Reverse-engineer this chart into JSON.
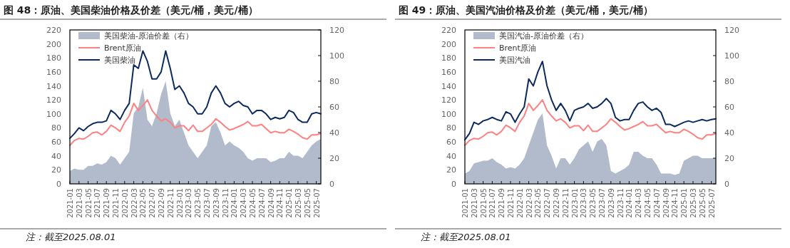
{
  "chart_data": [
    {
      "type": "line",
      "title": "图 48：原油、美国柴油价格及价差（美元/桶，美元/桶）",
      "annotations": [
        "注：截至2025.08.01"
      ],
      "legend": "top left",
      "x": [
        "2021-01",
        "2021-02",
        "2021-03",
        "2021-04",
        "2021-05",
        "2021-06",
        "2021-07",
        "2021-08",
        "2021-09",
        "2021-10",
        "2021-11",
        "2021-12",
        "2022-01",
        "2022-02",
        "2022-03",
        "2022-04",
        "2022-05",
        "2022-06",
        "2022-07",
        "2022-08",
        "2022-09",
        "2022-10",
        "2022-11",
        "2022-12",
        "2023-01",
        "2023-02",
        "2023-03",
        "2023-04",
        "2023-05",
        "2023-06",
        "2023-07",
        "2023-08",
        "2023-09",
        "2023-10",
        "2023-11",
        "2023-12",
        "2024-01",
        "2024-02",
        "2024-03",
        "2024-04",
        "2024-05",
        "2024-06",
        "2024-07",
        "2024-08",
        "2024-09",
        "2024-10",
        "2024-11",
        "2024-12",
        "2025-01",
        "2025-02",
        "2025-03",
        "2025-04",
        "2025-05",
        "2025-06",
        "2025-07",
        "2025-08"
      ],
      "xlim": [
        "2021-01",
        "2025-08"
      ],
      "xticks": [
        "2021-01",
        "2021-03",
        "2021-05",
        "2021-07",
        "2021-09",
        "2021-11",
        "2022-01",
        "2022-03",
        "2022-05",
        "2022-07",
        "2022-09",
        "2022-11",
        "2023-01",
        "2023-03",
        "2023-05",
        "2023-07",
        "2023-09",
        "2023-11",
        "2024-01",
        "2024-03",
        "2024-05",
        "2024-07",
        "2024-09",
        "2024-11",
        "2025-01",
        "2025-03",
        "2025-05",
        "2025-07"
      ],
      "ylim": [
        0,
        220
      ],
      "yticks": [
        0,
        20,
        40,
        60,
        80,
        100,
        120,
        140,
        160,
        180,
        200,
        220
      ],
      "y2lim": [
        0,
        120
      ],
      "y2ticks": [
        0,
        20,
        40,
        60,
        80,
        100,
        120
      ],
      "series": [
        {
          "name": "美国柴油-原油价差（右）",
          "type": "area",
          "axis": "y2",
          "color": "#b1bbcc",
          "values": [
            10,
            12,
            11,
            11,
            14,
            14,
            16,
            15,
            17,
            22,
            20,
            15,
            20,
            25,
            55,
            60,
            75,
            50,
            45,
            55,
            70,
            80,
            55,
            45,
            50,
            40,
            30,
            25,
            20,
            25,
            30,
            45,
            48,
            40,
            30,
            33,
            30,
            28,
            25,
            20,
            18,
            20,
            20,
            20,
            17,
            18,
            20,
            20,
            25,
            22,
            22,
            20,
            25,
            30,
            33,
            35
          ]
        },
        {
          "name": "Brent原油",
          "color": "#ff8080",
          "values": [
            55,
            62,
            65,
            64,
            68,
            73,
            74,
            70,
            75,
            84,
            80,
            75,
            88,
            97,
            115,
            105,
            112,
            120,
            105,
            97,
            90,
            93,
            88,
            80,
            83,
            83,
            76,
            84,
            75,
            75,
            80,
            85,
            93,
            88,
            82,
            77,
            79,
            82,
            85,
            89,
            83,
            83,
            85,
            79,
            73,
            75,
            73,
            73,
            78,
            75,
            71,
            66,
            64,
            70,
            70,
            72
          ]
        },
        {
          "name": "美国柴油",
          "color": "#0c2a5e",
          "values": [
            65,
            72,
            80,
            76,
            82,
            86,
            88,
            88,
            90,
            105,
            100,
            92,
            105,
            115,
            170,
            165,
            190,
            175,
            150,
            150,
            160,
            190,
            165,
            135,
            140,
            130,
            115,
            110,
            100,
            100,
            110,
            130,
            140,
            130,
            115,
            110,
            115,
            118,
            112,
            110,
            100,
            105,
            105,
            100,
            92,
            95,
            93,
            95,
            105,
            102,
            92,
            88,
            88,
            100,
            102,
            100
          ]
        }
      ]
    },
    {
      "type": "line",
      "title": "图 49：原油、美国汽油价格及价差（美元/桶，美元/桶）",
      "annotations": [
        "注：截至2025.08.01"
      ],
      "legend": "top left",
      "x": [
        "2021-01",
        "2021-02",
        "2021-03",
        "2021-04",
        "2021-05",
        "2021-06",
        "2021-07",
        "2021-08",
        "2021-09",
        "2021-10",
        "2021-11",
        "2021-12",
        "2022-01",
        "2022-02",
        "2022-03",
        "2022-04",
        "2022-05",
        "2022-06",
        "2022-07",
        "2022-08",
        "2022-09",
        "2022-10",
        "2022-11",
        "2022-12",
        "2023-01",
        "2023-02",
        "2023-03",
        "2023-04",
        "2023-05",
        "2023-06",
        "2023-07",
        "2023-08",
        "2023-09",
        "2023-10",
        "2023-11",
        "2023-12",
        "2024-01",
        "2024-02",
        "2024-03",
        "2024-04",
        "2024-05",
        "2024-06",
        "2024-07",
        "2024-08",
        "2024-09",
        "2024-10",
        "2024-11",
        "2024-12",
        "2025-01",
        "2025-02",
        "2025-03",
        "2025-04",
        "2025-05",
        "2025-06",
        "2025-07",
        "2025-08"
      ],
      "xlim": [
        "2021-01",
        "2025-08"
      ],
      "xticks": [
        "2021-01",
        "2021-03",
        "2021-05",
        "2021-07",
        "2021-09",
        "2021-11",
        "2022-01",
        "2022-03",
        "2022-05",
        "2022-07",
        "2022-09",
        "2022-11",
        "2023-01",
        "2023-03",
        "2023-05",
        "2023-07",
        "2023-09",
        "2023-11",
        "2024-01",
        "2024-03",
        "2024-05",
        "2024-07",
        "2024-09",
        "2024-11",
        "2025-01",
        "2025-03",
        "2025-05",
        "2025-07"
      ],
      "ylim": [
        0,
        220
      ],
      "yticks": [
        0,
        20,
        40,
        60,
        80,
        100,
        120,
        140,
        160,
        180,
        200,
        220
      ],
      "y2lim": [
        0,
        120
      ],
      "y2ticks": [
        0,
        20,
        40,
        60,
        80,
        100,
        120
      ],
      "series": [
        {
          "name": "美国汽油-原油价差（右）",
          "type": "area",
          "axis": "y2",
          "color": "#b1bbcc",
          "values": [
            8,
            10,
            16,
            17,
            18,
            18,
            20,
            17,
            15,
            12,
            13,
            12,
            15,
            20,
            30,
            40,
            50,
            55,
            30,
            22,
            12,
            20,
            20,
            15,
            20,
            27,
            30,
            33,
            25,
            33,
            35,
            30,
            10,
            8,
            10,
            12,
            15,
            25,
            25,
            22,
            20,
            20,
            15,
            8,
            8,
            8,
            7,
            8,
            18,
            20,
            22,
            22,
            20,
            20,
            20,
            20
          ]
        },
        {
          "name": "Brent原油",
          "color": "#ff8080",
          "values": [
            55,
            62,
            65,
            64,
            68,
            73,
            74,
            70,
            75,
            84,
            80,
            75,
            88,
            97,
            115,
            105,
            112,
            120,
            105,
            97,
            90,
            93,
            88,
            80,
            83,
            83,
            76,
            84,
            75,
            75,
            80,
            85,
            93,
            88,
            82,
            77,
            79,
            82,
            85,
            89,
            83,
            83,
            85,
            79,
            73,
            75,
            73,
            73,
            78,
            75,
            71,
            66,
            64,
            70,
            70,
            72
          ]
        },
        {
          "name": "美国汽油",
          "color": "#0c2a5e",
          "values": [
            63,
            72,
            88,
            85,
            90,
            92,
            95,
            92,
            90,
            103,
            100,
            88,
            100,
            110,
            150,
            140,
            160,
            175,
            140,
            120,
            105,
            115,
            105,
            90,
            105,
            108,
            110,
            115,
            108,
            110,
            115,
            122,
            115,
            95,
            90,
            92,
            92,
            105,
            115,
            117,
            110,
            105,
            108,
            102,
            85,
            85,
            82,
            85,
            88,
            90,
            88,
            90,
            92,
            90,
            92,
            93
          ]
        }
      ]
    }
  ]
}
